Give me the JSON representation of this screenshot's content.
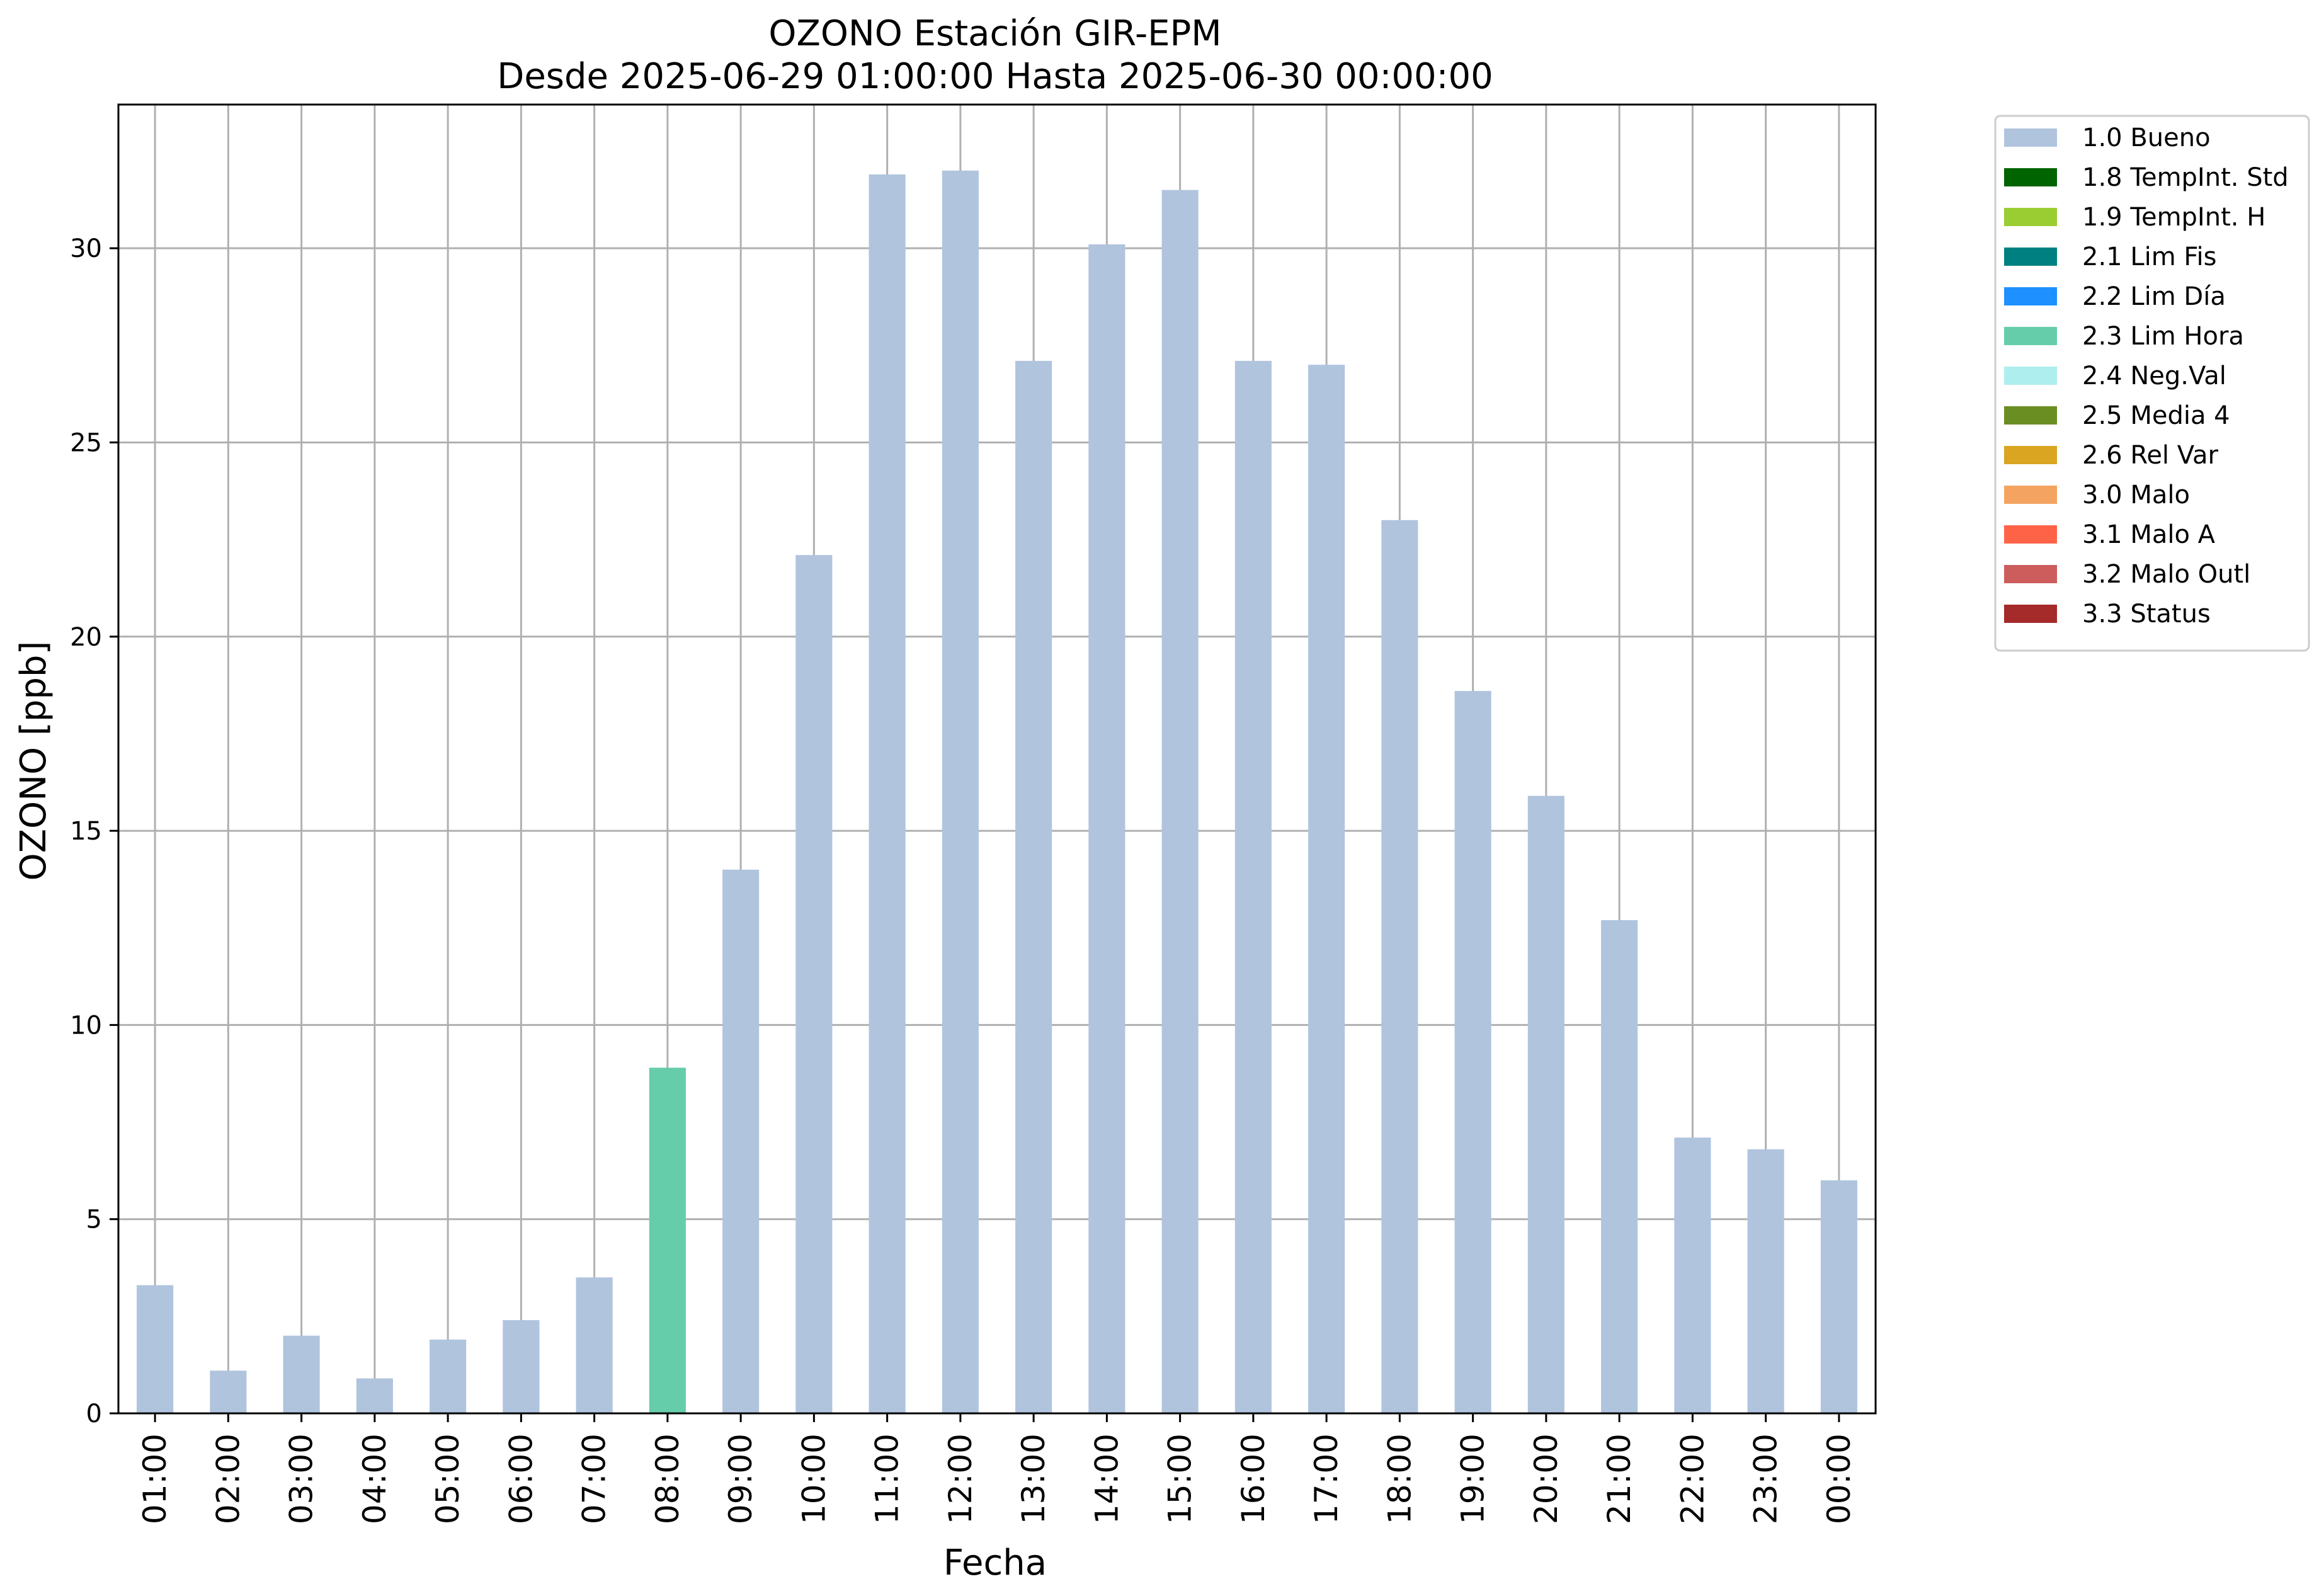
{
  "chart_data": {
    "type": "bar",
    "title": "OZONO Estación GIR-EPM",
    "subtitle": "Desde 2025-06-29 01:00:00 Hasta 2025-06-30 00:00:00",
    "xlabel": "Fecha",
    "ylabel": "OZONO [ppb]",
    "ylim": [
      0,
      33.7
    ],
    "yticks": [
      0,
      5,
      10,
      15,
      20,
      25,
      30
    ],
    "grid": true,
    "legend_position": "outside-top-right",
    "categories": [
      "01:00",
      "02:00",
      "03:00",
      "04:00",
      "05:00",
      "06:00",
      "07:00",
      "08:00",
      "09:00",
      "10:00",
      "11:00",
      "12:00",
      "13:00",
      "14:00",
      "15:00",
      "16:00",
      "17:00",
      "18:00",
      "19:00",
      "20:00",
      "21:00",
      "22:00",
      "23:00",
      "00:00"
    ],
    "values": [
      3.3,
      1.1,
      2.0,
      0.9,
      1.9,
      2.4,
      3.5,
      8.9,
      14.0,
      22.1,
      31.9,
      32.0,
      27.1,
      30.1,
      31.5,
      27.1,
      27.0,
      23.0,
      18.6,
      15.9,
      12.7,
      7.1,
      6.8,
      6.0
    ],
    "flags": [
      "1.0 Bueno",
      "1.0 Bueno",
      "1.0 Bueno",
      "1.0 Bueno",
      "1.0 Bueno",
      "1.0 Bueno",
      "1.0 Bueno",
      "2.3 Lim Hora",
      "1.0 Bueno",
      "1.0 Bueno",
      "1.0 Bueno",
      "1.0 Bueno",
      "1.0 Bueno",
      "1.0 Bueno",
      "1.0 Bueno",
      "1.0 Bueno",
      "1.0 Bueno",
      "1.0 Bueno",
      "1.0 Bueno",
      "1.0 Bueno",
      "1.0 Bueno",
      "1.0 Bueno",
      "1.0 Bueno",
      "1.0 Bueno"
    ],
    "legend": [
      {
        "label": "1.0 Bueno",
        "color": "#b0c4de"
      },
      {
        "label": "1.8 TempInt. Std",
        "color": "#006400"
      },
      {
        "label": "1.9 TempInt. H",
        "color": "#9acd32"
      },
      {
        "label": "2.1 Lim Fis",
        "color": "#008080"
      },
      {
        "label": "2.2 Lim Día",
        "color": "#1e90ff"
      },
      {
        "label": "2.3 Lim Hora",
        "color": "#66cdaa"
      },
      {
        "label": "2.4 Neg.Val",
        "color": "#afeeee"
      },
      {
        "label": "2.5 Media 4",
        "color": "#6b8e23"
      },
      {
        "label": "2.6 Rel Var",
        "color": "#daa520"
      },
      {
        "label": "3.0 Malo",
        "color": "#f4a460"
      },
      {
        "label": "3.1 Malo A",
        "color": "#ff6347"
      },
      {
        "label": "3.2 Malo Outl",
        "color": "#cd5c5c"
      },
      {
        "label": "3.3 Status",
        "color": "#a52a2a"
      }
    ]
  }
}
